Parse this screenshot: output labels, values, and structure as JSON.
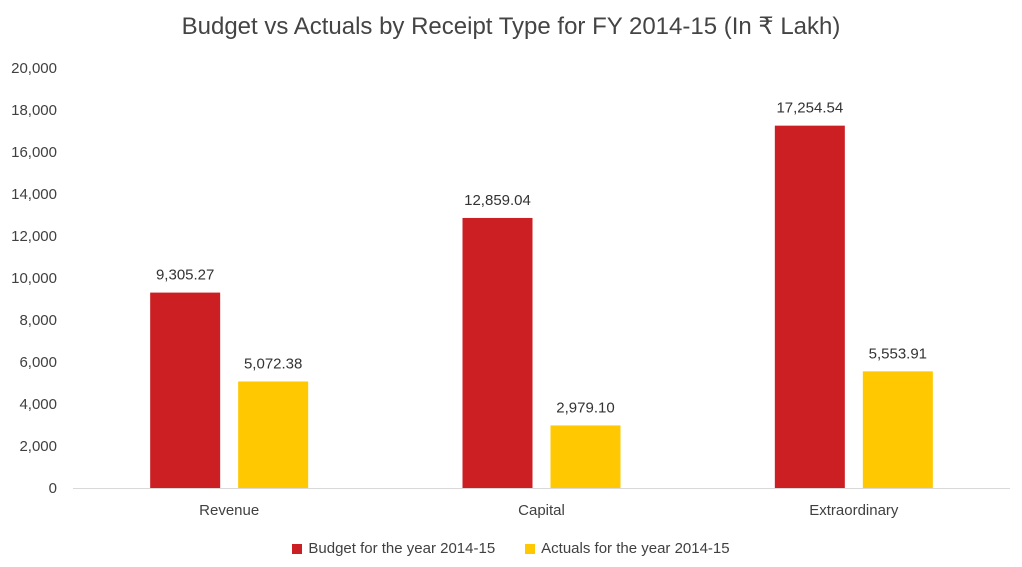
{
  "chart_data": {
    "type": "bar",
    "title": "Budget vs Actuals by Receipt Type for FY 2014-15 (In ₹ Lakh)",
    "categories": [
      "Revenue",
      "Capital",
      "Extraordinary"
    ],
    "series": [
      {
        "name": "Budget for the year 2014-15",
        "color": "#cc1f24",
        "values": [
          9305.27,
          12859.04,
          17254.54
        ],
        "labels": [
          "9,305.27",
          "12,859.04",
          "17,254.54"
        ]
      },
      {
        "name": "Actuals for the year 2014-15",
        "color": "#ffc800",
        "values": [
          5072.38,
          2979.1,
          5553.91
        ],
        "labels": [
          "5,072.38",
          "2,979.10",
          "5,553.91"
        ]
      }
    ],
    "ylim": [
      0,
      20000
    ],
    "yticks": [
      0,
      2000,
      4000,
      6000,
      8000,
      10000,
      12000,
      14000,
      16000,
      18000,
      20000
    ],
    "ytick_labels": [
      "0",
      "2,000",
      "4,000",
      "6,000",
      "8,000",
      "10,000",
      "12,000",
      "14,000",
      "16,000",
      "18,000",
      "20,000"
    ],
    "grid": false,
    "legend": "bottom"
  }
}
